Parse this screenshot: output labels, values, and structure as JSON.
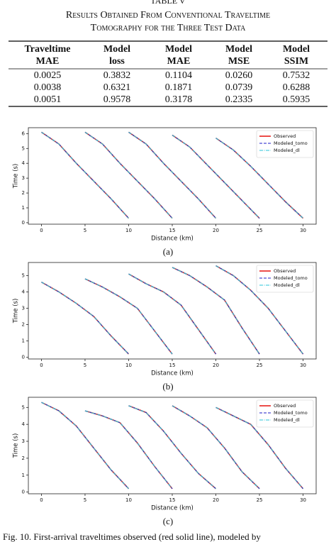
{
  "table_label": "TABLE V",
  "table_title": [
    "Results Obtained From Conventional Traveltime",
    "Tomography for the Three Test Data"
  ],
  "table": {
    "header": [
      [
        "Traveltime",
        "MAE"
      ],
      [
        "Model",
        "loss"
      ],
      [
        "Model",
        "MAE"
      ],
      [
        "Model",
        "MSE"
      ],
      [
        "Model",
        "SSIM"
      ]
    ],
    "rows": [
      [
        "0.0025",
        "0.3832",
        "0.1104",
        "0.0260",
        "0.7532"
      ],
      [
        "0.0038",
        "0.6321",
        "0.1871",
        "0.0739",
        "0.6288"
      ],
      [
        "0.0051",
        "0.9578",
        "0.3178",
        "0.2335",
        "0.5935"
      ]
    ]
  },
  "chart_data": [
    {
      "type": "line",
      "label": "(a)",
      "x_label": "Distance (km)",
      "y_label": "Time (s)",
      "legend": "upper right",
      "xlim": [
        -1.5,
        31.5
      ],
      "xticks": [
        0,
        5,
        10,
        15,
        20,
        25,
        30
      ],
      "ylim": [
        -0.1,
        6.4
      ],
      "yticks": [
        0,
        1,
        2,
        3,
        4,
        5,
        6
      ],
      "x": [
        0,
        2,
        4,
        6,
        8,
        10,
        null,
        5,
        7,
        9,
        11,
        13,
        15,
        null,
        10,
        12,
        14,
        16,
        18,
        20,
        null,
        15,
        17,
        19,
        21,
        23,
        25,
        null,
        20,
        22,
        24,
        26,
        28,
        30
      ],
      "series": [
        {
          "name": "Observed",
          "color": "#e8201c",
          "values": [
            6.1,
            5.3,
            4.0,
            2.8,
            1.6,
            0.3,
            null,
            6.1,
            5.3,
            4.0,
            2.8,
            1.6,
            0.3,
            null,
            6.1,
            5.3,
            4.0,
            2.8,
            1.6,
            0.3,
            null,
            5.9,
            5.1,
            3.9,
            2.7,
            1.5,
            0.3,
            null,
            5.7,
            4.9,
            3.8,
            2.6,
            1.4,
            0.3
          ]
        },
        {
          "name": "Modeled_tomo",
          "color": "#1c1cc8",
          "values": [
            6.1,
            5.3,
            4.0,
            2.8,
            1.6,
            0.3,
            null,
            6.1,
            5.3,
            4.0,
            2.8,
            1.6,
            0.3,
            null,
            6.1,
            5.3,
            4.0,
            2.8,
            1.6,
            0.3,
            null,
            5.9,
            5.1,
            3.9,
            2.7,
            1.5,
            0.3,
            null,
            5.7,
            4.9,
            3.8,
            2.6,
            1.4,
            0.3
          ]
        },
        {
          "name": "Modeled_dl",
          "color": "#29c4d8",
          "values": [
            6.1,
            5.3,
            4.0,
            2.8,
            1.6,
            0.3,
            null,
            6.1,
            5.3,
            4.0,
            2.8,
            1.6,
            0.3,
            null,
            6.1,
            5.3,
            4.0,
            2.8,
            1.6,
            0.3,
            null,
            5.9,
            5.1,
            3.9,
            2.7,
            1.5,
            0.3,
            null,
            5.7,
            4.9,
            3.8,
            2.6,
            1.4,
            0.3
          ]
        }
      ]
    },
    {
      "type": "line",
      "label": "(b)",
      "x_label": "Distance (km)",
      "y_label": "Time (s)",
      "legend": "upper right",
      "xlim": [
        -1.5,
        31.5
      ],
      "xticks": [
        0,
        5,
        10,
        15,
        20,
        25,
        30
      ],
      "ylim": [
        -0.1,
        5.8
      ],
      "yticks": [
        0,
        1,
        2,
        3,
        4,
        5
      ],
      "x": [
        0,
        2,
        4,
        6,
        8,
        10,
        null,
        5,
        7,
        9,
        11,
        13,
        15,
        null,
        10,
        12,
        14,
        16,
        18,
        20,
        null,
        15,
        17,
        19,
        21,
        23,
        25,
        null,
        20,
        22,
        24,
        26,
        28,
        30
      ],
      "series": [
        {
          "name": "Observed",
          "color": "#e8201c",
          "values": [
            4.6,
            4.0,
            3.3,
            2.5,
            1.3,
            0.2,
            null,
            4.8,
            4.3,
            3.7,
            3.0,
            1.6,
            0.2,
            null,
            5.1,
            4.5,
            4.0,
            3.2,
            1.7,
            0.2,
            null,
            5.5,
            5.0,
            4.3,
            3.5,
            1.8,
            0.2,
            null,
            5.6,
            5.0,
            4.1,
            3.0,
            1.6,
            0.2
          ]
        },
        {
          "name": "Modeled_tomo",
          "color": "#1c1cc8",
          "values": [
            4.6,
            4.0,
            3.3,
            2.5,
            1.3,
            0.2,
            null,
            4.8,
            4.3,
            3.7,
            3.0,
            1.6,
            0.2,
            null,
            5.1,
            4.5,
            4.0,
            3.2,
            1.7,
            0.2,
            null,
            5.5,
            5.0,
            4.3,
            3.5,
            1.8,
            0.2,
            null,
            5.6,
            5.0,
            4.1,
            3.0,
            1.6,
            0.2
          ]
        },
        {
          "name": "Modeled_dl",
          "color": "#29c4d8",
          "values": [
            4.6,
            4.0,
            3.3,
            2.5,
            1.3,
            0.2,
            null,
            4.8,
            4.3,
            3.7,
            3.0,
            1.6,
            0.2,
            null,
            5.1,
            4.5,
            4.0,
            3.2,
            1.7,
            0.2,
            null,
            5.5,
            5.0,
            4.3,
            3.5,
            1.8,
            0.2,
            null,
            5.6,
            5.0,
            4.1,
            3.0,
            1.6,
            0.2
          ]
        }
      ]
    },
    {
      "type": "line",
      "label": "(c)",
      "x_label": "Distance (km)",
      "y_label": "Time (s)",
      "legend": "upper right",
      "xlim": [
        -1.5,
        31.5
      ],
      "xticks": [
        0,
        5,
        10,
        15,
        20,
        25,
        30
      ],
      "ylim": [
        -0.1,
        5.6
      ],
      "yticks": [
        0,
        1,
        2,
        3,
        4,
        5
      ],
      "x": [
        0,
        2,
        4,
        6,
        8,
        10,
        null,
        5,
        7,
        9,
        11,
        13,
        15,
        null,
        10,
        12,
        14,
        16,
        18,
        20,
        null,
        15,
        17,
        19,
        21,
        23,
        25,
        null,
        20,
        22,
        24,
        26,
        28,
        30
      ],
      "series": [
        {
          "name": "Observed",
          "color": "#e8201c",
          "values": [
            5.3,
            4.8,
            3.9,
            2.6,
            1.3,
            0.2,
            null,
            4.8,
            4.5,
            4.1,
            2.9,
            1.5,
            0.2,
            null,
            5.1,
            4.7,
            3.6,
            2.3,
            1.1,
            0.2,
            null,
            5.1,
            4.5,
            3.8,
            2.6,
            1.2,
            0.2,
            null,
            5.0,
            4.5,
            4.0,
            2.8,
            1.4,
            0.2
          ]
        },
        {
          "name": "Modeled_tomo",
          "color": "#1c1cc8",
          "values": [
            5.3,
            4.8,
            3.9,
            2.6,
            1.3,
            0.2,
            null,
            4.8,
            4.5,
            4.1,
            2.9,
            1.5,
            0.2,
            null,
            5.1,
            4.7,
            3.6,
            2.3,
            1.1,
            0.2,
            null,
            5.1,
            4.5,
            3.8,
            2.6,
            1.2,
            0.2,
            null,
            5.0,
            4.5,
            4.0,
            2.8,
            1.4,
            0.2
          ]
        },
        {
          "name": "Modeled_dl",
          "color": "#29c4d8",
          "values": [
            5.3,
            4.8,
            3.9,
            2.6,
            1.3,
            0.2,
            null,
            4.8,
            4.5,
            4.1,
            2.9,
            1.5,
            0.2,
            null,
            5.1,
            4.7,
            3.6,
            2.3,
            1.1,
            0.2,
            null,
            5.1,
            4.5,
            3.8,
            2.6,
            1.2,
            0.2,
            null,
            5.0,
            4.5,
            4.0,
            2.8,
            1.4,
            0.2
          ]
        }
      ]
    }
  ],
  "caption": "Fig. 10.   First-arrival traveltimes observed (red solid line), modeled by"
}
